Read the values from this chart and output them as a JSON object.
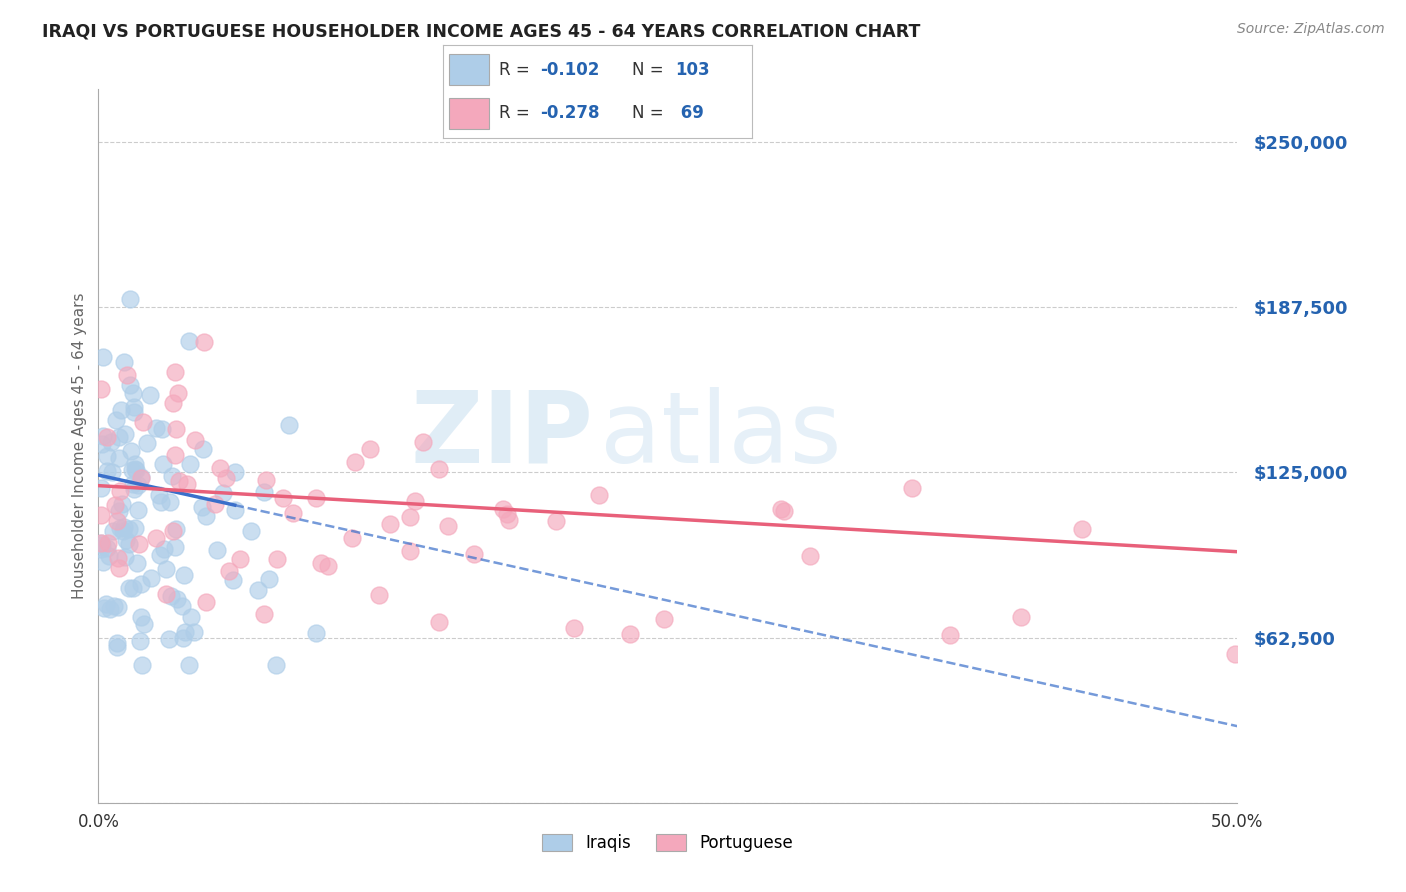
{
  "title": "IRAQI VS PORTUGUESE HOUSEHOLDER INCOME AGES 45 - 64 YEARS CORRELATION CHART",
  "source": "Source: ZipAtlas.com",
  "ylabel": "Householder Income Ages 45 - 64 years",
  "xlim": [
    0.0,
    0.5
  ],
  "ylim": [
    0,
    270000
  ],
  "yticks": [
    0,
    62500,
    125000,
    187500,
    250000
  ],
  "ytick_labels": [
    "",
    "$62,500",
    "$125,000",
    "$187,500",
    "$250,000"
  ],
  "xticks": [
    0.0,
    0.1,
    0.2,
    0.3,
    0.4,
    0.5
  ],
  "xtick_labels": [
    "0.0%",
    "",
    "",
    "",
    "",
    "50.0%"
  ],
  "iraqi_R": -0.102,
  "iraqi_N": 103,
  "portuguese_R": -0.278,
  "portuguese_N": 69,
  "iraqi_color": "#aecde8",
  "portuguese_color": "#f4a8bc",
  "iraqi_line_color": "#3a6fca",
  "portuguese_line_color": "#e8607a",
  "watermark_zip": "ZIP",
  "watermark_atlas": "atlas",
  "legend_iraqi_R": "R = -0.102",
  "legend_iraqi_N": "N = 103",
  "legend_port_R": "R = -0.278",
  "legend_port_N": "N =  69",
  "legend_label_color": "#333333",
  "legend_value_color": "#3a6fca"
}
